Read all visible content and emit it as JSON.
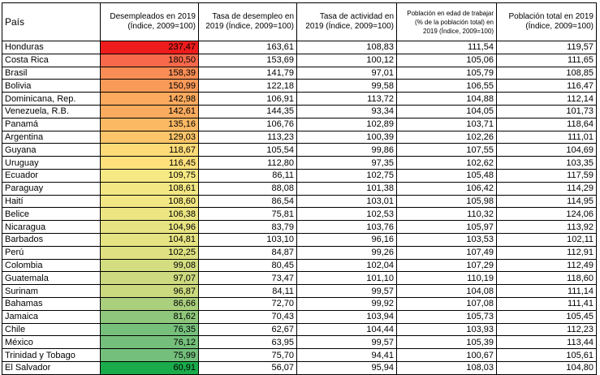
{
  "headers": [
    "País",
    "Desempleados en 2019 (Índice, 2009=100)",
    "Tasa de desempleo en 2019 (Índice, 2009=100)",
    "Tasa de actividad en 2019 (Índice, 2009=100)",
    "Población en edad de trabajar (% de la población total) en 2019 (Índice, 2009=100)",
    "Población total en 2019 (Índice, 2009=100)"
  ],
  "heat_colors": [
    "#f8696b",
    "#ffeb84",
    "#63be7b"
  ],
  "rows": [
    {
      "pais": "Honduras",
      "desempleados": "237,47",
      "tasa_desempleo": "163,61",
      "tasa_actividad": "108,83",
      "pob_edad": "111,54",
      "pob_total": "119,57",
      "heat": "#ee1c1c"
    },
    {
      "pais": "Costa Rica",
      "desempleados": "180,50",
      "tasa_desempleo": "153,69",
      "tasa_actividad": "100,12",
      "pob_edad": "105,06",
      "pob_total": "111,65",
      "heat": "#f8694b"
    },
    {
      "pais": "Brasil",
      "desempleados": "158,39",
      "tasa_desempleo": "141,79",
      "tasa_actividad": "97,01",
      "pob_edad": "105,79",
      "pob_total": "108,85",
      "heat": "#f98d55"
    },
    {
      "pais": "Bolivia",
      "desempleados": "150,99",
      "tasa_desempleo": "122,18",
      "tasa_actividad": "99,58",
      "pob_edad": "106,55",
      "pob_total": "116,47",
      "heat": "#fa9a58"
    },
    {
      "pais": "Dominicana, Rep.",
      "desempleados": "142,98",
      "tasa_desempleo": "106,91",
      "tasa_actividad": "113,72",
      "pob_edad": "104,88",
      "pob_total": "112,14",
      "heat": "#fbaa5e"
    },
    {
      "pais": "Venezuela, R.B.",
      "desempleados": "142,61",
      "tasa_desempleo": "144,35",
      "tasa_actividad": "93,34",
      "pob_edad": "104,05",
      "pob_total": "101,73",
      "heat": "#fbab5e"
    },
    {
      "pais": "Panamá",
      "desempleados": "135,16",
      "tasa_desempleo": "106,76",
      "tasa_actividad": "102,89",
      "pob_edad": "103,71",
      "pob_total": "118,64",
      "heat": "#fcb963"
    },
    {
      "pais": "Argentina",
      "desempleados": "129,03",
      "tasa_desempleo": "113,23",
      "tasa_actividad": "100,39",
      "pob_edad": "102,26",
      "pob_total": "111,01",
      "heat": "#fdc569"
    },
    {
      "pais": "Guyana",
      "desempleados": "118,67",
      "tasa_desempleo": "105,54",
      "tasa_actividad": "99,86",
      "pob_edad": "107,55",
      "pob_total": "104,69",
      "heat": "#fedb77"
    },
    {
      "pais": "Uruguay",
      "desempleados": "116,45",
      "tasa_desempleo": "112,80",
      "tasa_actividad": "97,35",
      "pob_edad": "102,62",
      "pob_total": "103,35",
      "heat": "#ffe07b"
    },
    {
      "pais": "Ecuador",
      "desempleados": "109,75",
      "tasa_desempleo": "86,11",
      "tasa_actividad": "102,75",
      "pob_edad": "105,48",
      "pob_total": "117,59",
      "heat": "#f6e883"
    },
    {
      "pais": "Paraguay",
      "desempleados": "108,61",
      "tasa_desempleo": "88,08",
      "tasa_actividad": "101,38",
      "pob_edad": "106,42",
      "pob_total": "114,29",
      "heat": "#f3e783"
    },
    {
      "pais": "Haití",
      "desempleados": "108,60",
      "tasa_desempleo": "86,54",
      "tasa_actividad": "103,01",
      "pob_edad": "105,98",
      "pob_total": "114,95",
      "heat": "#f3e783"
    },
    {
      "pais": "Belice",
      "desempleados": "106,38",
      "tasa_desempleo": "75,81",
      "tasa_actividad": "102,53",
      "pob_edad": "110,32",
      "pob_total": "124,06",
      "heat": "#ece582"
    },
    {
      "pais": "Nicaragua",
      "desempleados": "104,96",
      "tasa_desempleo": "83,79",
      "tasa_actividad": "103,76",
      "pob_edad": "105,97",
      "pob_total": "113,92",
      "heat": "#e7e382"
    },
    {
      "pais": "Barbados",
      "desempleados": "104,81",
      "tasa_desempleo": "103,10",
      "tasa_actividad": "96,16",
      "pob_edad": "103,53",
      "pob_total": "102,11",
      "heat": "#e6e382"
    },
    {
      "pais": "Perú",
      "desempleados": "102,25",
      "tasa_desempleo": "84,87",
      "tasa_actividad": "99,26",
      "pob_edad": "107,49",
      "pob_total": "112,91",
      "heat": "#dee081"
    },
    {
      "pais": "Colombia",
      "desempleados": "99,08",
      "tasa_desempleo": "80,45",
      "tasa_actividad": "102,04",
      "pob_edad": "107,29",
      "pob_total": "112,49",
      "heat": "#d4dd80"
    },
    {
      "pais": "Guatemala",
      "desempleados": "97,07",
      "tasa_desempleo": "73,47",
      "tasa_actividad": "101,10",
      "pob_edad": "110,19",
      "pob_total": "118,60",
      "heat": "#cdda7f"
    },
    {
      "pais": "Surinam",
      "desempleados": "96,87",
      "tasa_desempleo": "84,11",
      "tasa_actividad": "99,57",
      "pob_edad": "104,08",
      "pob_total": "111,14",
      "heat": "#ccda7f"
    },
    {
      "pais": "Bahamas",
      "desempleados": "86,66",
      "tasa_desempleo": "72,70",
      "tasa_actividad": "99,92",
      "pob_edad": "107,08",
      "pob_total": "111,41",
      "heat": "#aacf7d"
    },
    {
      "pais": "Jamaica",
      "desempleados": "81,62",
      "tasa_desempleo": "70,43",
      "tasa_actividad": "103,94",
      "pob_edad": "105,73",
      "pob_total": "105,45",
      "heat": "#8fc77c"
    },
    {
      "pais": "Chile",
      "desempleados": "76,35",
      "tasa_desempleo": "62,67",
      "tasa_actividad": "104,44",
      "pob_edad": "103,93",
      "pob_total": "112,23",
      "heat": "#76c07b"
    },
    {
      "pais": "México",
      "desempleados": "76,12",
      "tasa_desempleo": "63,95",
      "tasa_actividad": "99,57",
      "pob_edad": "105,39",
      "pob_total": "113,44",
      "heat": "#74bf7b"
    },
    {
      "pais": "Trinidad y Tobago",
      "desempleados": "75,99",
      "tasa_desempleo": "75,70",
      "tasa_actividad": "94,41",
      "pob_edad": "100,67",
      "pob_total": "105,61",
      "heat": "#73bf7b"
    },
    {
      "pais": "El Salvador",
      "desempleados": "60,91",
      "tasa_desempleo": "56,07",
      "tasa_actividad": "95,94",
      "pob_edad": "108,03",
      "pob_total": "104,80",
      "heat": "#1aab4b"
    }
  ]
}
